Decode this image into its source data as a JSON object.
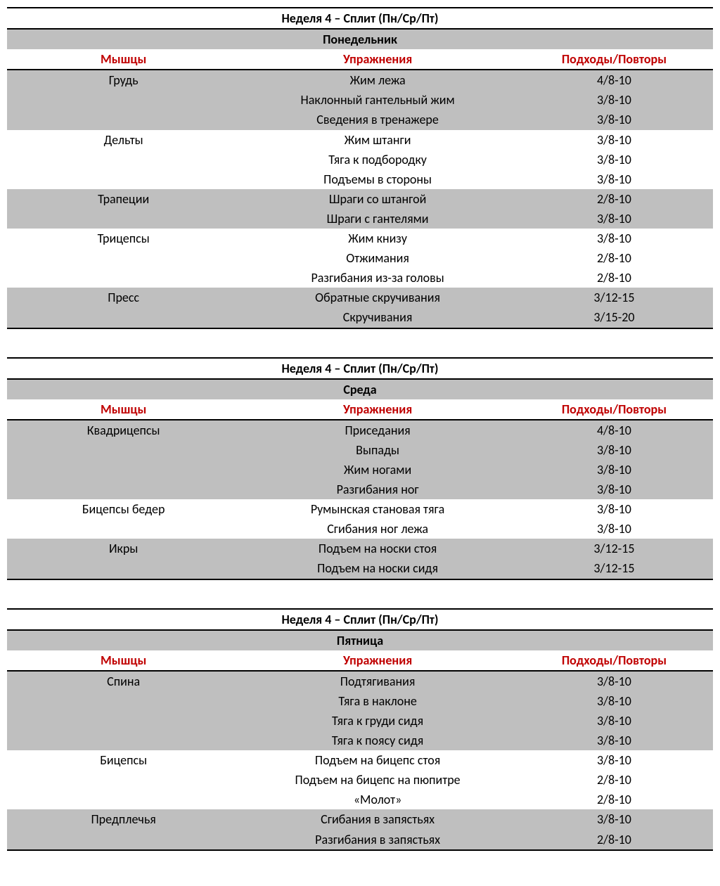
{
  "columns": {
    "muscles": "Мышцы",
    "exercises": "Упражнения",
    "sets": "Подходы/Повторы"
  },
  "colors": {
    "header_text": "#c00000",
    "band_bg": "#bfbfbf",
    "border": "#000000",
    "text": "#000000",
    "page_bg": "#ffffff"
  },
  "tables": [
    {
      "title": "Неделя 4 – Сплит  (Пн/Ср/Пт)",
      "day": "Понедельник",
      "groups": [
        {
          "muscle": "Грудь",
          "rows": [
            {
              "ex": "Жим лежа",
              "sets": "4/8-10"
            },
            {
              "ex": "Наклонный гантельный жим",
              "sets": "3/8-10"
            },
            {
              "ex": "Сведения в тренажере",
              "sets": "3/8-10"
            }
          ]
        },
        {
          "muscle": "Дельты",
          "rows": [
            {
              "ex": "Жим штанги",
              "sets": "3/8-10"
            },
            {
              "ex": "Тяга к подбородку",
              "sets": "3/8-10"
            },
            {
              "ex": "Подъемы в стороны",
              "sets": "3/8-10"
            }
          ]
        },
        {
          "muscle": "Трапеции",
          "rows": [
            {
              "ex": "Шраги со штангой",
              "sets": "2/8-10"
            },
            {
              "ex": "Шраги с гантелями",
              "sets": "3/8-10"
            }
          ]
        },
        {
          "muscle": "Трицепсы",
          "rows": [
            {
              "ex": "Жим книзу",
              "sets": "3/8-10"
            },
            {
              "ex": "Отжимания",
              "sets": "2/8-10"
            },
            {
              "ex": "Разгибания из-за головы",
              "sets": "2/8-10"
            }
          ]
        },
        {
          "muscle": "Пресс",
          "rows": [
            {
              "ex": "Обратные скручивания",
              "sets": "3/12-15"
            },
            {
              "ex": "Скручивания",
              "sets": "3/15-20"
            }
          ]
        }
      ]
    },
    {
      "title": "Неделя 4 – Сплит  (Пн/Ср/Пт)",
      "day": "Среда",
      "groups": [
        {
          "muscle": "Квадрицепсы",
          "rows": [
            {
              "ex": "Приседания",
              "sets": "4/8-10"
            },
            {
              "ex": "Выпады",
              "sets": "3/8-10"
            },
            {
              "ex": "Жим ногами",
              "sets": "3/8-10"
            },
            {
              "ex": "Разгибания ног",
              "sets": "3/8-10"
            }
          ]
        },
        {
          "muscle": "Бицепсы бедер",
          "rows": [
            {
              "ex": "Румынская становая тяга",
              "sets": "3/8-10"
            },
            {
              "ex": "Сгибания ног лежа",
              "sets": "3/8-10"
            }
          ]
        },
        {
          "muscle": "Икры",
          "rows": [
            {
              "ex": "Подъем на носки стоя",
              "sets": "3/12-15"
            },
            {
              "ex": "Подъем на носки сидя",
              "sets": "3/12-15"
            }
          ]
        }
      ]
    },
    {
      "title": "Неделя 4 – Сплит  (Пн/Ср/Пт)",
      "day": "Пятница",
      "groups": [
        {
          "muscle": "Спина",
          "rows": [
            {
              "ex": "Подтягивания",
              "sets": "3/8-10"
            },
            {
              "ex": "Тяга в наклоне",
              "sets": "3/8-10"
            },
            {
              "ex": "Тяга к груди сидя",
              "sets": "3/8-10"
            },
            {
              "ex": "Тяга к поясу сидя",
              "sets": "3/8-10"
            }
          ]
        },
        {
          "muscle": "Бицепсы",
          "rows": [
            {
              "ex": "Подъем на бицепс стоя",
              "sets": "3/8-10"
            },
            {
              "ex": "Подъем на бицепс на пюпитре",
              "sets": "2/8-10"
            },
            {
              "ex": "«Молот»",
              "sets": "2/8-10"
            }
          ]
        },
        {
          "muscle": "Предплечья",
          "rows": [
            {
              "ex": "Сгибания в запястьях",
              "sets": "3/8-10"
            },
            {
              "ex": "Разгибания в запястьях",
              "sets": "2/8-10"
            }
          ]
        }
      ]
    }
  ]
}
